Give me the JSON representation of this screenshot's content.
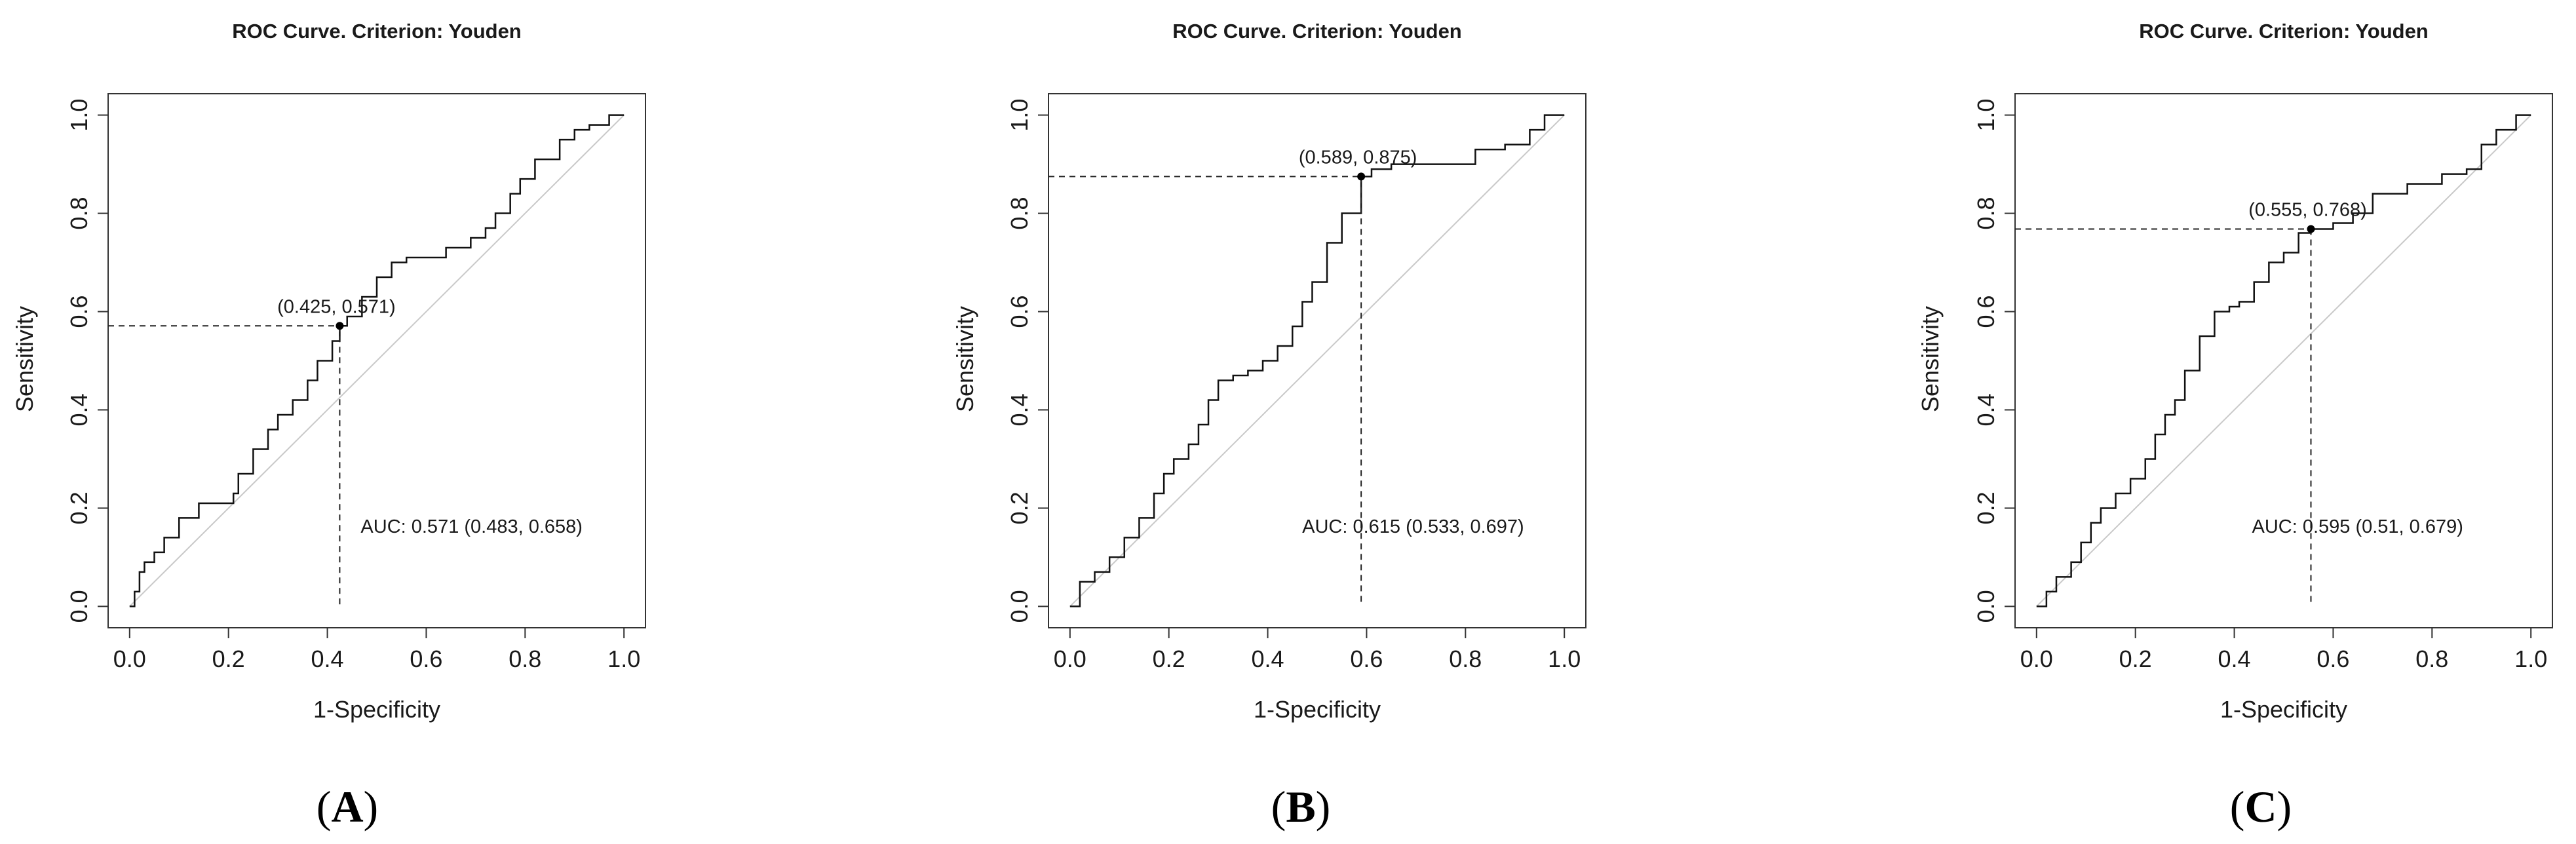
{
  "chart_data": [
    {
      "type": "line",
      "panel_label": "A",
      "title": "ROC Curve. Criterion: Youden",
      "xlabel": "1-Specificity",
      "ylabel": "Sensitivity",
      "xlim": [
        0,
        1
      ],
      "ylim": [
        0,
        1
      ],
      "xticks": [
        "0.0",
        "0.2",
        "0.4",
        "0.6",
        "0.8",
        "1.0"
      ],
      "yticks": [
        "0.0",
        "0.2",
        "0.4",
        "0.6",
        "0.8",
        "1.0"
      ],
      "grid": false,
      "optimal_point": {
        "x": 0.425,
        "y": 0.571,
        "label": "(0.425, 0.571)"
      },
      "auc_label": "AUC: 0.571 (0.483, 0.658)",
      "series": [
        {
          "name": "chance",
          "style": "diagonal",
          "x": [
            0,
            1
          ],
          "y": [
            0,
            1
          ]
        },
        {
          "name": "roc",
          "style": "step",
          "x": [
            0,
            0.01,
            0.02,
            0.03,
            0.05,
            0.07,
            0.1,
            0.14,
            0.21,
            0.22,
            0.25,
            0.28,
            0.3,
            0.33,
            0.36,
            0.38,
            0.41,
            0.425,
            0.44,
            0.47,
            0.5,
            0.53,
            0.56,
            0.6,
            0.64,
            0.69,
            0.72,
            0.74,
            0.77,
            0.79,
            0.82,
            0.87,
            0.9,
            0.93,
            0.97,
            1
          ],
          "y": [
            0,
            0.03,
            0.07,
            0.09,
            0.11,
            0.14,
            0.18,
            0.21,
            0.23,
            0.27,
            0.32,
            0.36,
            0.39,
            0.42,
            0.46,
            0.5,
            0.54,
            0.571,
            0.59,
            0.63,
            0.67,
            0.7,
            0.71,
            0.71,
            0.73,
            0.75,
            0.77,
            0.8,
            0.84,
            0.87,
            0.91,
            0.95,
            0.97,
            0.98,
            1,
            1
          ]
        }
      ]
    },
    {
      "type": "line",
      "panel_label": "B",
      "title": "ROC Curve. Criterion: Youden",
      "xlabel": "1-Specificity",
      "ylabel": "Sensitivity",
      "xlim": [
        0,
        1
      ],
      "ylim": [
        0,
        1
      ],
      "xticks": [
        "0.0",
        "0.2",
        "0.4",
        "0.6",
        "0.8",
        "1.0"
      ],
      "yticks": [
        "0.0",
        "0.2",
        "0.4",
        "0.6",
        "0.8",
        "1.0"
      ],
      "grid": false,
      "optimal_point": {
        "x": 0.589,
        "y": 0.875,
        "label": "(0.589, 0.875)"
      },
      "auc_label": "AUC: 0.615 (0.533, 0.697)",
      "series": [
        {
          "name": "chance",
          "style": "diagonal",
          "x": [
            0,
            1
          ],
          "y": [
            0,
            1
          ]
        },
        {
          "name": "roc",
          "style": "step",
          "x": [
            0,
            0.02,
            0.05,
            0.08,
            0.11,
            0.14,
            0.17,
            0.19,
            0.21,
            0.24,
            0.26,
            0.28,
            0.3,
            0.33,
            0.36,
            0.39,
            0.42,
            0.45,
            0.47,
            0.49,
            0.52,
            0.55,
            0.589,
            0.61,
            0.65,
            0.72,
            0.78,
            0.82,
            0.88,
            0.93,
            0.96,
            1
          ],
          "y": [
            0,
            0.05,
            0.07,
            0.1,
            0.14,
            0.18,
            0.23,
            0.27,
            0.3,
            0.33,
            0.37,
            0.42,
            0.46,
            0.47,
            0.48,
            0.5,
            0.53,
            0.57,
            0.62,
            0.66,
            0.74,
            0.8,
            0.875,
            0.89,
            0.9,
            0.9,
            0.9,
            0.93,
            0.94,
            0.97,
            1,
            1
          ]
        }
      ]
    },
    {
      "type": "line",
      "panel_label": "C",
      "title": "ROC Curve. Criterion: Youden",
      "xlabel": "1-Specificity",
      "ylabel": "Sensitivity",
      "xlim": [
        0,
        1
      ],
      "ylim": [
        0,
        1
      ],
      "xticks": [
        "0.0",
        "0.2",
        "0.4",
        "0.6",
        "0.8",
        "1.0"
      ],
      "yticks": [
        "0.0",
        "0.2",
        "0.4",
        "0.6",
        "0.8",
        "1.0"
      ],
      "grid": false,
      "optimal_point": {
        "x": 0.555,
        "y": 0.768,
        "label": "(0.555, 0.768)"
      },
      "auc_label": "AUC: 0.595 (0.51, 0.679)",
      "series": [
        {
          "name": "chance",
          "style": "diagonal",
          "x": [
            0,
            1
          ],
          "y": [
            0,
            1
          ]
        },
        {
          "name": "roc",
          "style": "step",
          "x": [
            0,
            0.02,
            0.04,
            0.07,
            0.09,
            0.11,
            0.13,
            0.16,
            0.19,
            0.22,
            0.24,
            0.26,
            0.28,
            0.3,
            0.33,
            0.36,
            0.39,
            0.41,
            0.44,
            0.47,
            0.5,
            0.53,
            0.555,
            0.6,
            0.64,
            0.68,
            0.75,
            0.82,
            0.87,
            0.9,
            0.93,
            0.97,
            1
          ],
          "y": [
            0,
            0.03,
            0.06,
            0.09,
            0.13,
            0.17,
            0.2,
            0.23,
            0.26,
            0.3,
            0.35,
            0.39,
            0.42,
            0.48,
            0.55,
            0.6,
            0.61,
            0.62,
            0.66,
            0.7,
            0.72,
            0.76,
            0.768,
            0.78,
            0.8,
            0.84,
            0.86,
            0.88,
            0.89,
            0.94,
            0.97,
            1,
            1
          ]
        }
      ]
    }
  ]
}
